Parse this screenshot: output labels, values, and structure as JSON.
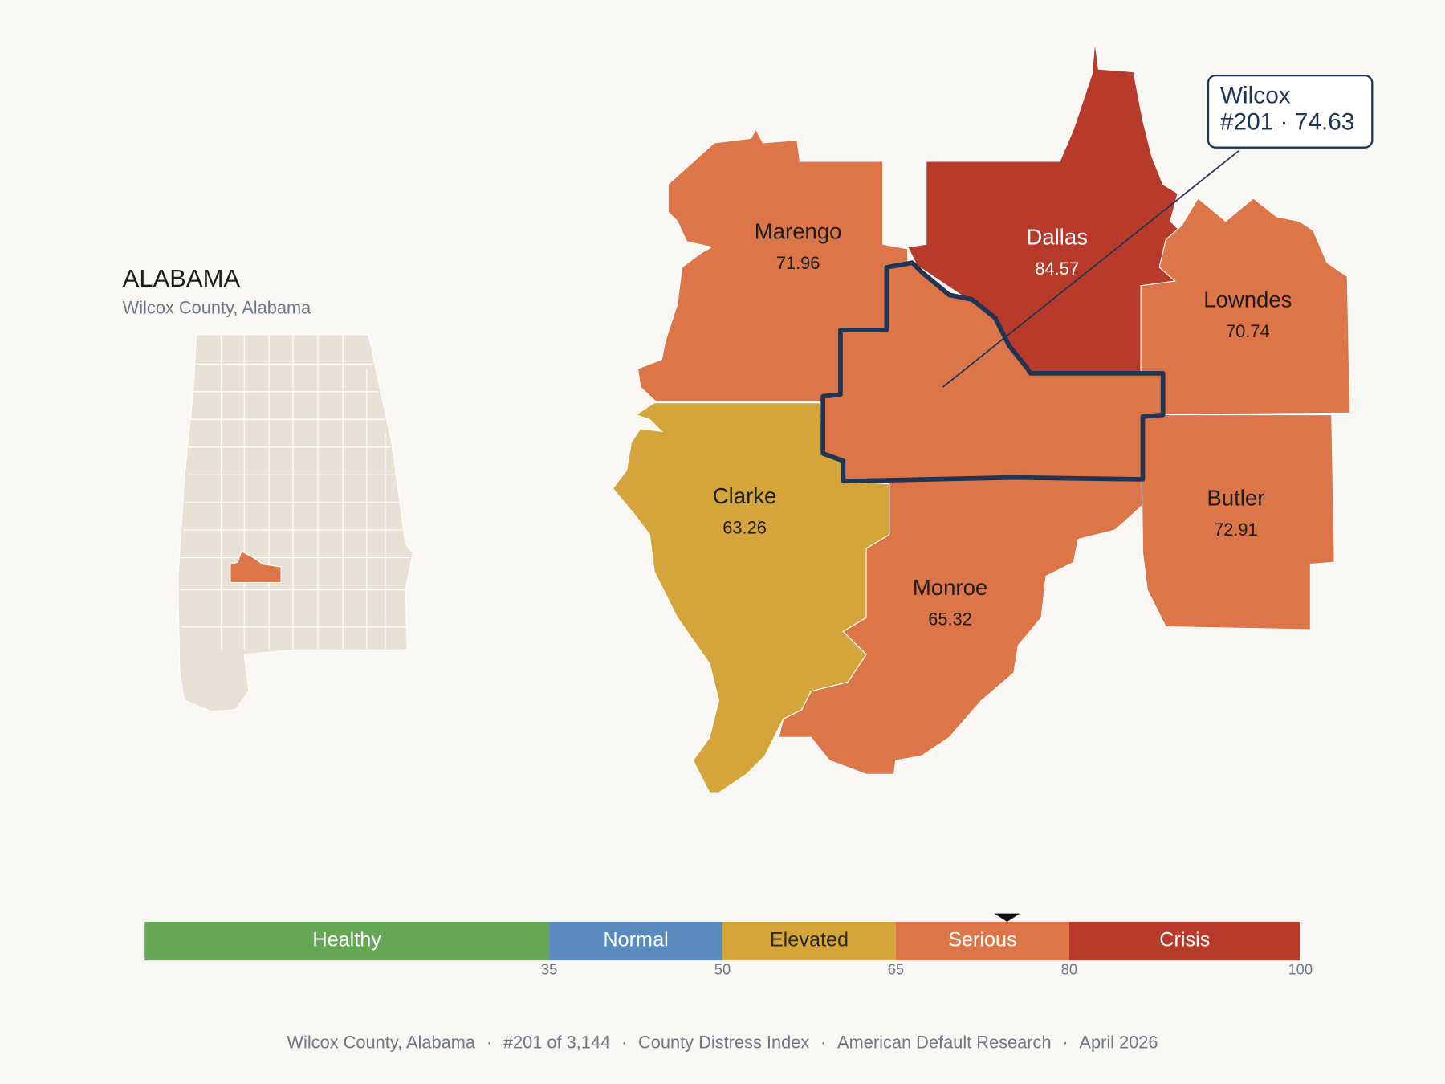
{
  "header": {
    "title": "ALABAMA",
    "subtitle": "Wilcox County, Alabama"
  },
  "counties": [
    {
      "name": "Marengo",
      "value": 71.96
    },
    {
      "name": "Dallas",
      "value": 84.57
    },
    {
      "name": "Lowndes",
      "value": 70.74
    },
    {
      "name": "Clarke",
      "value": 63.26
    },
    {
      "name": "Monroe",
      "value": 65.32
    },
    {
      "name": "Butler",
      "value": 72.91
    }
  ],
  "selected": {
    "name": "Wilcox",
    "label": "#201 · 74.63",
    "value": 74.63,
    "outline_color": "#1f3553"
  },
  "scale": {
    "range": [
      0,
      100
    ],
    "bins": [
      {
        "label": "Healthy",
        "color": "#66a657",
        "text_color": "#ffffff"
      },
      {
        "label": "Normal",
        "color": "#5b8bbc",
        "text_color": "#ffffff"
      },
      {
        "label": "Elevated",
        "color": "#d3a53a",
        "text_color": "#2a2a2a"
      },
      {
        "label": "Serious",
        "color": "#dc7649",
        "text_color": "#ffffff"
      },
      {
        "label": "Crisis",
        "color": "#b83a2b",
        "text_color": "#ffffff"
      }
    ],
    "ticks": [
      35,
      50,
      65,
      80,
      100
    ]
  },
  "footer": {
    "parts": [
      "Wilcox County, Alabama",
      "#201 of 3,144",
      "County Distress Index",
      "American Default Research",
      "April 2026"
    ],
    "separator": "·"
  }
}
